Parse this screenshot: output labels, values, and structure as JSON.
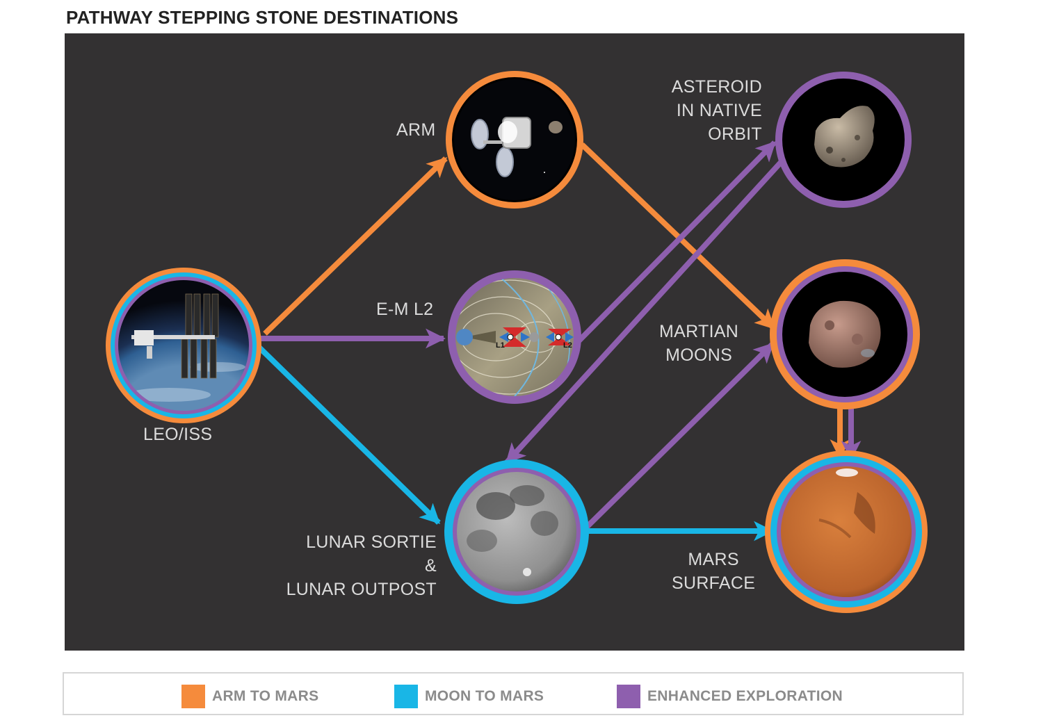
{
  "title": "PATHWAY STEPPING STONE DESTINATIONS",
  "colors": {
    "panel": "#333132",
    "orange": "#f58b3c",
    "cyan": "#19b6e6",
    "purple": "#8e5fae",
    "label": "#dcdcdc"
  },
  "nodes": {
    "leo": {
      "label": "LEO/ISS",
      "image": "iss-over-earth"
    },
    "arm": {
      "label": "ARM",
      "image": "asteroid-redirect-spacecraft"
    },
    "eml2": {
      "label": "E-M L2",
      "image": "earth-moon-lagrange-diagram",
      "l1": "L1",
      "l2": "L2"
    },
    "asteroid": {
      "label": "ASTEROID\nIN NATIVE\nORBIT",
      "image": "asteroid"
    },
    "martian": {
      "label": "MARTIAN\nMOONS",
      "image": "phobos"
    },
    "lunar": {
      "label": "LUNAR SORTIE\n&\nLUNAR OUTPOST",
      "image": "moon"
    },
    "mars": {
      "label": "MARS\nSURFACE",
      "image": "mars"
    }
  },
  "legend": [
    {
      "label": "ARM TO MARS",
      "color": "#f58b3c"
    },
    {
      "label": "MOON TO MARS",
      "color": "#19b6e6"
    },
    {
      "label": "ENHANCED EXPLORATION",
      "color": "#8e5fae"
    }
  ]
}
